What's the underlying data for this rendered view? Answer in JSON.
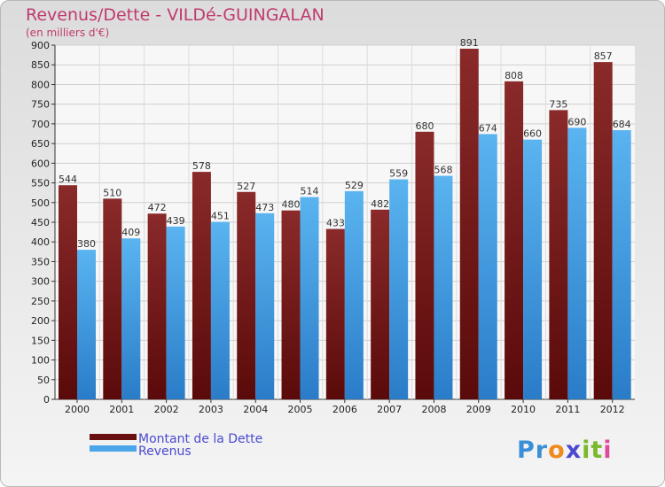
{
  "chart_data": {
    "type": "bar",
    "title": "Revenus/Dette - VILDé-GUINGALAN",
    "subtitle": "(en milliers d'€)",
    "categories": [
      "2000",
      "2001",
      "2002",
      "2003",
      "2004",
      "2005",
      "2006",
      "2007",
      "2008",
      "2009",
      "2010",
      "2011",
      "2012"
    ],
    "series": [
      {
        "name": "Montant de la Dette",
        "color": "#7a1a1a",
        "values": [
          544,
          510,
          472,
          578,
          527,
          480,
          433,
          482,
          680,
          891,
          808,
          735,
          857
        ]
      },
      {
        "name": "Revenus",
        "color": "#4aa6e8",
        "values": [
          380,
          409,
          439,
          451,
          473,
          514,
          529,
          559,
          568,
          674,
          660,
          690,
          684
        ]
      }
    ],
    "ylim": [
      0,
      900
    ],
    "ytick_step": 50,
    "grid": true,
    "legend_position": "bottom-left"
  },
  "logo": {
    "text": "Proxiti",
    "letters": [
      "P",
      "r",
      "o",
      "x",
      "i",
      "t",
      "i"
    ],
    "colors": [
      "#3b8fd6",
      "#3b8fd6",
      "#f08a1c",
      "#4a4ad0",
      "#7ab82e",
      "#7ab82e",
      "#e04a9c"
    ]
  }
}
